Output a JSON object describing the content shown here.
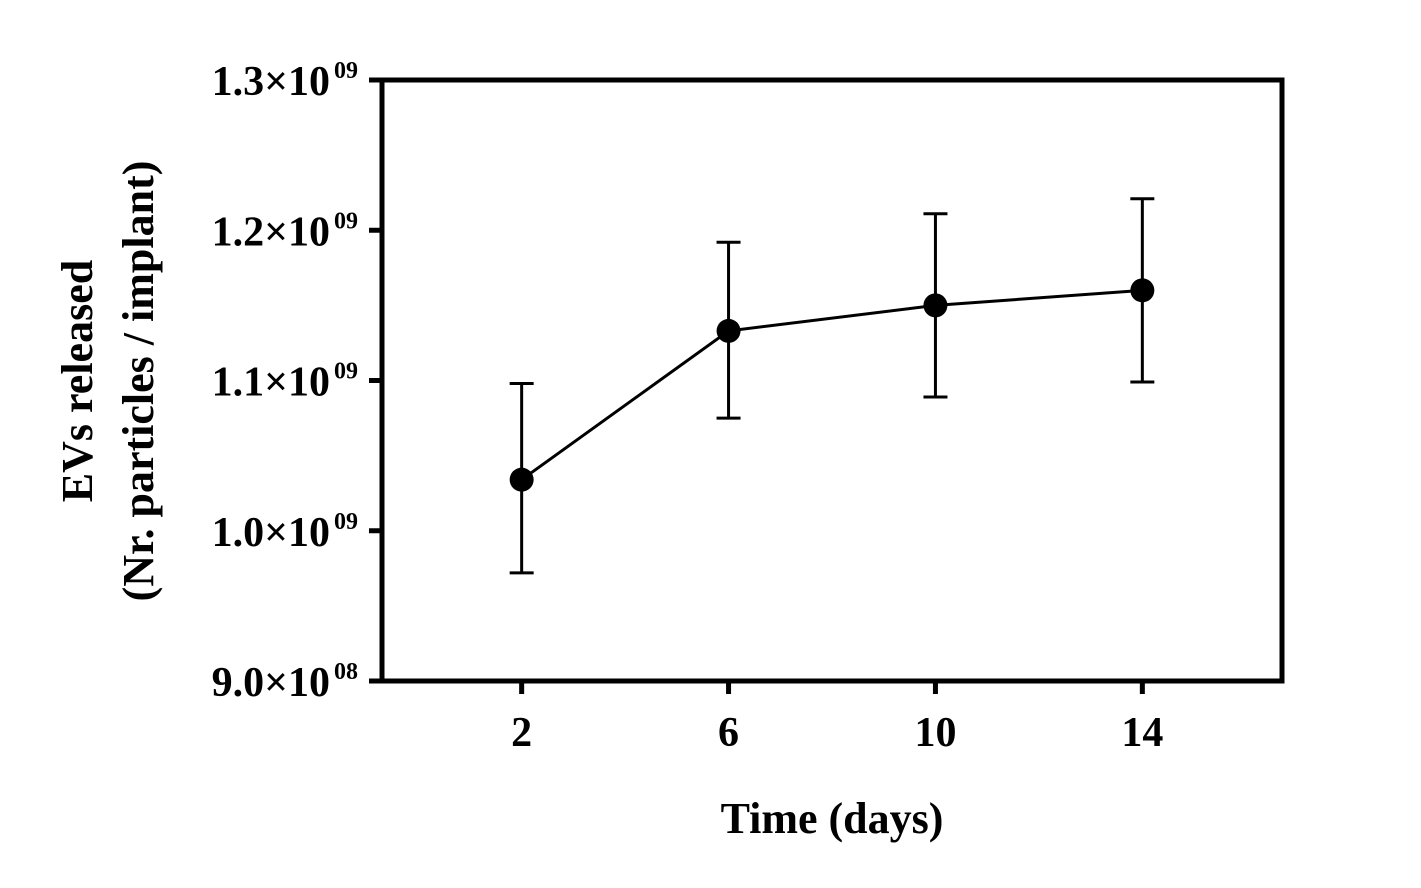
{
  "chart_data": {
    "type": "line",
    "title": "",
    "xlabel": "Time (days)",
    "ylabel_lines": [
      "EVs released",
      "(Nr. particles / implant)"
    ],
    "x": [
      2,
      6,
      10,
      14
    ],
    "x_ticks": [
      {
        "value": 2,
        "label": "2"
      },
      {
        "value": 6,
        "label": "6"
      },
      {
        "value": 10,
        "label": "10"
      },
      {
        "value": 14,
        "label": "14"
      }
    ],
    "xlim": [
      -0.7,
      16.7
    ],
    "ylim": [
      900000000,
      1300000000
    ],
    "y_ticks": [
      {
        "value": 900000000,
        "mantissa": "9.0",
        "exponent": "08"
      },
      {
        "value": 1000000000,
        "mantissa": "1.0",
        "exponent": "09"
      },
      {
        "value": 1100000000,
        "mantissa": "1.1",
        "exponent": "09"
      },
      {
        "value": 1200000000,
        "mantissa": "1.2",
        "exponent": "09"
      },
      {
        "value": 1300000000,
        "mantissa": "1.3",
        "exponent": "09"
      }
    ],
    "times_sign": "×10",
    "series": [
      {
        "name": "EVs released",
        "values": [
          1034000000,
          1133000000,
          1150000000,
          1160000000
        ],
        "err_upper": [
          1098000000,
          1192000000,
          1211000000,
          1221000000
        ],
        "err_lower": [
          972000000,
          1075000000,
          1089000000,
          1099000000
        ],
        "color": "#000000"
      }
    ],
    "grid": false,
    "legend": "none"
  }
}
